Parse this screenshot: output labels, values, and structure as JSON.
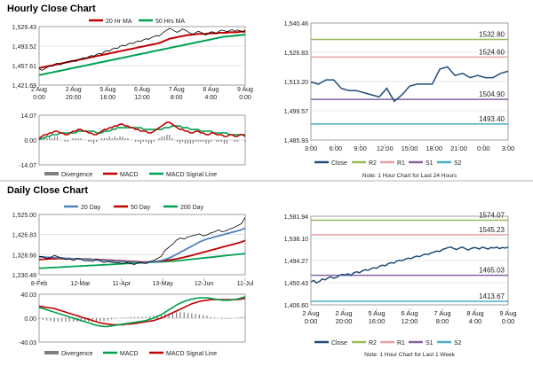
{
  "page": {
    "hourly_title": "Hourly Close Chart",
    "daily_title": "Daily Close Chart"
  },
  "colors": {
    "close": "#1f4e79",
    "ma_short": "#c00000",
    "ma_long": "#00a050",
    "ma_mid": "#4f81bd",
    "divergence": "#7f7f7f",
    "r2": "#9bbb59",
    "r1": "#e6a0a0",
    "s1": "#8064a2",
    "s2": "#4bacc6",
    "grid": "#d0d0d0"
  },
  "chart_data": [
    {
      "id": "hourly-price",
      "type": "line",
      "ylim": [
        1421.69,
        1529.43
      ],
      "yticks": [
        "1,529.43",
        "1,493.52",
        "1,457.61",
        "1,421.69"
      ],
      "xticks": [
        "2 Aug\n0:00",
        "2 Aug\n20:00",
        "5 Aug\n16:00",
        "6 Aug\n12:00",
        "7 Aug\n8:00",
        "8 Aug\n4:00",
        "9 Aug\n0:00"
      ],
      "legend": [
        "20 Hr MA",
        "50 Hrs MA"
      ],
      "close": [
        1452,
        1449,
        1451,
        1454,
        1457,
        1456,
        1460,
        1462,
        1459,
        1461,
        1463,
        1465,
        1466,
        1467,
        1465,
        1468,
        1470,
        1472,
        1471,
        1474,
        1476,
        1475,
        1478,
        1480,
        1479,
        1483,
        1485,
        1484,
        1488,
        1490,
        1489,
        1493,
        1495,
        1494,
        1497,
        1499,
        1498,
        1501,
        1503,
        1502,
        1505,
        1507,
        1506,
        1509,
        1511,
        1513,
        1512,
        1516,
        1520,
        1523,
        1526,
        1524,
        1521,
        1519,
        1522,
        1525,
        1523,
        1520,
        1517,
        1515,
        1518,
        1521,
        1519,
        1516,
        1514,
        1517,
        1520,
        1519,
        1517,
        1521,
        1523,
        1522,
        1520,
        1522,
        1524,
        1521,
        1523,
        1522,
        1520,
        1523
      ],
      "ma20": [
        1453,
        1454,
        1455,
        1456,
        1457,
        1458,
        1459,
        1460,
        1461,
        1462,
        1463,
        1464,
        1465,
        1466,
        1467,
        1468,
        1469,
        1470,
        1471,
        1472,
        1473,
        1474,
        1475,
        1476,
        1477,
        1478,
        1479,
        1480,
        1481,
        1482,
        1483,
        1484,
        1485,
        1486,
        1487,
        1488,
        1489,
        1490,
        1491,
        1492,
        1493,
        1494,
        1495,
        1496,
        1497,
        1498,
        1499,
        1501,
        1503,
        1505,
        1507,
        1508,
        1509,
        1510,
        1511,
        1512,
        1513,
        1514,
        1514,
        1515,
        1515,
        1516,
        1516,
        1516,
        1516,
        1517,
        1517,
        1517,
        1517,
        1518,
        1518,
        1518,
        1518,
        1519,
        1519,
        1519,
        1519,
        1520,
        1520,
        1520
      ],
      "ma50": [
        1440,
        1441,
        1442,
        1443,
        1444,
        1445,
        1446,
        1447,
        1448,
        1449,
        1450,
        1451,
        1452,
        1453,
        1454,
        1455,
        1456,
        1457,
        1458,
        1459,
        1460,
        1461,
        1462,
        1463,
        1464,
        1465,
        1466,
        1467,
        1468,
        1469,
        1470,
        1471,
        1472,
        1473,
        1474,
        1475,
        1476,
        1477,
        1478,
        1479,
        1480,
        1481,
        1482,
        1483,
        1484,
        1485,
        1486,
        1487,
        1488,
        1489,
        1490,
        1491,
        1492,
        1493,
        1494,
        1495,
        1496,
        1497,
        1498,
        1499,
        1500,
        1501,
        1502,
        1503,
        1504,
        1505,
        1506,
        1507,
        1508,
        1509,
        1510,
        1511,
        1511,
        1512,
        1512,
        1513,
        1513,
        1514,
        1514,
        1515
      ]
    },
    {
      "id": "hourly-macd",
      "type": "line",
      "ylim": [
        -14.07,
        14.07
      ],
      "yticks": [
        "14.07",
        "0.00",
        "-14.07"
      ],
      "legend": [
        "Divergence",
        "MACD",
        "MACD Signal Line"
      ],
      "macd": [
        1,
        2,
        3,
        3,
        4,
        4,
        5,
        5,
        4,
        4,
        3,
        3,
        4,
        5,
        5,
        6,
        6,
        5,
        5,
        4,
        4,
        3,
        3,
        4,
        5,
        6,
        6,
        7,
        7,
        8,
        8,
        9,
        9,
        8,
        8,
        7,
        7,
        6,
        6,
        5,
        5,
        5,
        4,
        4,
        5,
        6,
        7,
        8,
        9,
        10,
        10,
        9,
        8,
        7,
        6,
        6,
        5,
        5,
        4,
        4,
        5,
        5,
        4,
        4,
        3,
        3,
        4,
        4,
        3,
        3,
        3,
        2,
        2,
        3,
        3,
        2,
        2,
        3,
        3,
        2
      ],
      "signal": [
        0,
        1,
        1,
        2,
        2,
        3,
        3,
        3,
        4,
        4,
        4,
        4,
        4,
        4,
        4,
        5,
        5,
        5,
        5,
        5,
        5,
        5,
        4,
        4,
        4,
        5,
        5,
        5,
        6,
        6,
        7,
        7,
        7,
        7,
        7,
        7,
        7,
        7,
        7,
        7,
        6,
        6,
        6,
        6,
        6,
        6,
        6,
        6,
        7,
        7,
        7,
        8,
        8,
        8,
        8,
        7,
        7,
        7,
        6,
        6,
        6,
        6,
        5,
        5,
        5,
        5,
        5,
        4,
        4,
        4,
        4,
        4,
        4,
        3,
        3,
        3,
        3,
        3,
        3,
        3
      ]
    },
    {
      "id": "hourly-levels",
      "type": "line",
      "ylim": [
        1485.93,
        1540.46
      ],
      "yticks": [
        "1,540.46",
        "1,526.83",
        "1,513.20",
        "1,499.57",
        "1,485.93"
      ],
      "xticks": [
        "3:00",
        "6:00",
        "9:00",
        "12:00",
        "15:00",
        "18:00",
        "21:00",
        "0:00",
        "3:00"
      ],
      "levels": [
        {
          "name": "R2",
          "value": 1532.8,
          "label": "1532.80"
        },
        {
          "name": "R1",
          "value": 1524.6,
          "label": "1524.60"
        },
        {
          "name": "S1",
          "value": 1504.9,
          "label": "1504.90"
        },
        {
          "name": "S2",
          "value": 1493.4,
          "label": "1493.40"
        }
      ],
      "legend": [
        "Close",
        "R2",
        "R1",
        "S1",
        "S2"
      ],
      "note": "Note: 1 Hour Chart for Last 24 Hours",
      "close": [
        1513,
        1512,
        1514,
        1514,
        1510,
        1509,
        1509,
        1508,
        1507,
        1506,
        1510,
        1504,
        1507,
        1511,
        1512,
        1512,
        1512,
        1519,
        1520,
        1516,
        1517,
        1515,
        1516,
        1515,
        1515,
        1517,
        1518
      ]
    },
    {
      "id": "daily-price",
      "type": "line",
      "ylim": [
        1230.49,
        1525.0
      ],
      "yticks": [
        "1,525.00",
        "1,426.83",
        "1,328.66",
        "1,230.49"
      ],
      "xticks": [
        "8-Feb",
        "12-Mar",
        "11-Apr",
        "13-May",
        "12-Jun",
        "11-Jul"
      ],
      "legend": [
        "20 Day",
        "50 Day",
        "200 Day"
      ],
      "close": [
        1320,
        1318,
        1310,
        1315,
        1325,
        1318,
        1312,
        1305,
        1308,
        1300,
        1310,
        1305,
        1298,
        1300,
        1295,
        1305,
        1298,
        1290,
        1295,
        1292,
        1290,
        1288,
        1285,
        1290,
        1285,
        1280,
        1290,
        1288,
        1285,
        1295,
        1300,
        1310,
        1320,
        1350,
        1365,
        1380,
        1400,
        1410,
        1405,
        1415,
        1420,
        1425,
        1430,
        1420,
        1425,
        1435,
        1440,
        1450,
        1440,
        1445,
        1455,
        1460,
        1470,
        1480,
        1510
      ],
      "ma20": [
        1318,
        1317,
        1316,
        1315,
        1314,
        1313,
        1312,
        1311,
        1310,
        1309,
        1308,
        1307,
        1306,
        1305,
        1304,
        1303,
        1302,
        1300,
        1299,
        1298,
        1297,
        1296,
        1295,
        1294,
        1293,
        1292,
        1291,
        1290,
        1290,
        1292,
        1294,
        1297,
        1300,
        1305,
        1312,
        1320,
        1330,
        1340,
        1350,
        1360,
        1370,
        1380,
        1390,
        1398,
        1405,
        1410,
        1415,
        1420,
        1425,
        1430,
        1435,
        1440,
        1445,
        1450,
        1458
      ],
      "ma50": [
        1305,
        1306,
        1307,
        1308,
        1308,
        1309,
        1309,
        1309,
        1309,
        1309,
        1308,
        1308,
        1307,
        1307,
        1306,
        1305,
        1304,
        1303,
        1302,
        1301,
        1300,
        1299,
        1298,
        1297,
        1296,
        1295,
        1294,
        1293,
        1293,
        1293,
        1294,
        1295,
        1297,
        1299,
        1302,
        1305,
        1308,
        1312,
        1316,
        1320,
        1325,
        1330,
        1335,
        1340,
        1345,
        1350,
        1355,
        1360,
        1365,
        1370,
        1375,
        1380,
        1385,
        1390,
        1398
      ],
      "ma200": [
        1262,
        1263,
        1264,
        1265,
        1266,
        1267,
        1268,
        1269,
        1270,
        1271,
        1272,
        1273,
        1274,
        1275,
        1276,
        1277,
        1278,
        1279,
        1280,
        1281,
        1282,
        1283,
        1284,
        1285,
        1286,
        1287,
        1288,
        1289,
        1290,
        1291,
        1292,
        1293,
        1294,
        1295,
        1296,
        1297,
        1298,
        1300,
        1302,
        1304,
        1306,
        1308,
        1310,
        1312,
        1314,
        1316,
        1318,
        1320,
        1322,
        1324,
        1326,
        1328,
        1330,
        1332,
        1334
      ]
    },
    {
      "id": "daily-macd",
      "type": "line",
      "ylim": [
        -40.03,
        40.03
      ],
      "yticks": [
        "40.03",
        "0.00",
        "-40.03"
      ],
      "legend": [
        "Divergence",
        "MACD",
        "MACD Signal Line"
      ],
      "macd": [
        18,
        16,
        14,
        12,
        10,
        8,
        6,
        4,
        2,
        0,
        -2,
        -4,
        -6,
        -8,
        -10,
        -12,
        -13,
        -14,
        -14,
        -13,
        -12,
        -11,
        -10,
        -9,
        -8,
        -7,
        -6,
        -5,
        -4,
        -2,
        0,
        3,
        6,
        10,
        14,
        18,
        22,
        25,
        28,
        30,
        32,
        33,
        34,
        34,
        34,
        33,
        32,
        31,
        30,
        30,
        30,
        31,
        32,
        34,
        36
      ],
      "signal": [
        20,
        19,
        18,
        17,
        16,
        14,
        12,
        10,
        8,
        6,
        4,
        2,
        0,
        -2,
        -4,
        -6,
        -8,
        -9,
        -10,
        -11,
        -11,
        -11,
        -11,
        -10,
        -10,
        -9,
        -8,
        -7,
        -6,
        -5,
        -4,
        -2,
        0,
        3,
        6,
        9,
        12,
        15,
        18,
        21,
        24,
        26,
        28,
        29,
        30,
        31,
        31,
        31,
        31,
        31,
        31,
        31,
        31,
        32,
        33
      ]
    },
    {
      "id": "daily-levels",
      "type": "line",
      "ylim": [
        1406.6,
        1581.94
      ],
      "yticks": [
        "1,581.94",
        "1,538.10",
        "1,494.27",
        "1,450.43",
        "1,406.60"
      ],
      "xticks": [
        "2 Aug\n0:00",
        "2 Aug\n20:00",
        "5 Aug\n16:00",
        "6 Aug\n12:00",
        "7 Aug\n8:00",
        "8 Aug\n4:00",
        "9 Aug\n0:00"
      ],
      "levels": [
        {
          "name": "R2",
          "value": 1574.07,
          "label": "1574.07"
        },
        {
          "name": "R1",
          "value": 1545.23,
          "label": "1545.23"
        },
        {
          "name": "S1",
          "value": 1465.03,
          "label": "1465.03"
        },
        {
          "name": "S2",
          "value": 1413.67,
          "label": "1413.67"
        }
      ],
      "legend": [
        "Close",
        "R2",
        "R1",
        "S1",
        "S2"
      ],
      "note": "Note: 1 Hour Chart for Last 1 Week",
      "close": [
        1452,
        1455,
        1450,
        1453,
        1458,
        1456,
        1460,
        1462,
        1459,
        1461,
        1465,
        1467,
        1466,
        1468,
        1465,
        1470,
        1472,
        1470,
        1474,
        1476,
        1475,
        1478,
        1480,
        1479,
        1483,
        1485,
        1484,
        1488,
        1490,
        1489,
        1493,
        1495,
        1494,
        1497,
        1499,
        1498,
        1501,
        1503,
        1502,
        1505,
        1507,
        1506,
        1509,
        1511,
        1513,
        1512,
        1516,
        1518,
        1520,
        1521,
        1518,
        1516,
        1519,
        1521,
        1518,
        1515,
        1518,
        1520,
        1519,
        1517,
        1521,
        1519,
        1517,
        1520,
        1519,
        1521,
        1518,
        1520,
        1519,
        1521
      ]
    }
  ]
}
